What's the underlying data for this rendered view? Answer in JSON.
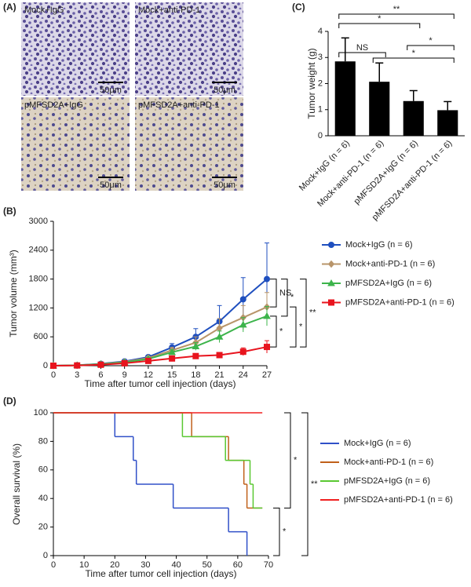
{
  "image_panel": {
    "label": "(A)",
    "images": [
      {
        "caption": "Mock+IgG",
        "scale_bar": "50μm"
      },
      {
        "caption": "Mock+anti-PD-1",
        "scale_bar": "50μm"
      },
      {
        "caption": "pMFSD2A+IgG",
        "scale_bar": "50μm"
      },
      {
        "caption": "pMFSD2A+anti-PD-1",
        "scale_bar": "50μm"
      }
    ]
  },
  "chart_data": [
    {
      "panel_label": "(C)",
      "type": "bar",
      "ylabel": "Tumor weight (g)",
      "categories": [
        "Mock+IgG (n = 6)",
        "Mock+anti-PD-1 (n = 6)",
        "pMFSD2A+IgG (n = 6)",
        "pMFSD2A+anti-PD-1 (n = 6)"
      ],
      "values": [
        2.85,
        2.07,
        1.33,
        0.98
      ],
      "errors": [
        0.9,
        0.72,
        0.4,
        0.33
      ],
      "color": "#000000",
      "ylim": [
        0,
        4
      ],
      "yticks": [
        0,
        1,
        2,
        3,
        4
      ],
      "annotations": [
        "**",
        "*",
        "NS",
        "*",
        "*"
      ]
    },
    {
      "panel_label": "(B)",
      "type": "line",
      "ylabel": "Tumor volume (mm³)",
      "xlabel": "Time after tumor cell injection (days)",
      "x": [
        0,
        3,
        6,
        9,
        12,
        15,
        18,
        21,
        24,
        27
      ],
      "series": [
        {
          "name": "Mock+IgG (n = 6)",
          "color": "#1f4fbf",
          "marker": "o",
          "values": [
            0,
            10,
            40,
            90,
            180,
            380,
            600,
            920,
            1380,
            1800
          ],
          "errors": [
            0,
            5,
            10,
            20,
            40,
            80,
            170,
            330,
            450,
            750
          ]
        },
        {
          "name": "Mock+anti-PD-1 (n = 6)",
          "color": "#b8956a",
          "marker": "D",
          "values": [
            0,
            8,
            35,
            80,
            160,
            320,
            480,
            780,
            1000,
            1220
          ],
          "errors": [
            0,
            5,
            10,
            20,
            30,
            60,
            120,
            200,
            250,
            300
          ]
        },
        {
          "name": "pMFSD2A+IgG (n = 6)",
          "color": "#3cb44b",
          "marker": "^",
          "values": [
            0,
            8,
            30,
            70,
            140,
            280,
            400,
            600,
            850,
            1030
          ],
          "errors": [
            0,
            5,
            10,
            15,
            30,
            50,
            80,
            120,
            150,
            200
          ]
        },
        {
          "name": "pMFSD2A+anti-PD-1 (n = 6)",
          "color": "#e8141e",
          "marker": "s",
          "values": [
            0,
            5,
            20,
            50,
            100,
            150,
            200,
            220,
            290,
            390
          ],
          "errors": [
            0,
            3,
            5,
            10,
            20,
            30,
            40,
            50,
            80,
            130
          ]
        }
      ],
      "xlim": [
        0,
        27
      ],
      "xticks": [
        0,
        3,
        6,
        9,
        12,
        15,
        18,
        21,
        24,
        27
      ],
      "ylim": [
        0,
        3000
      ],
      "yticks": [
        0,
        600,
        1200,
        1800,
        2400,
        3000
      ],
      "annotations": [
        "NS",
        "*",
        "**",
        "*",
        "*"
      ]
    },
    {
      "panel_label": "(D)",
      "type": "line",
      "drawstyle": "steps-post",
      "ylabel": "Overall survival (%)",
      "xlabel": "Time after tumor cell injection (days)",
      "series": [
        {
          "name": "Mock+IgG  (n = 6)",
          "color": "#3050c8",
          "x": [
            0,
            20,
            26,
            27,
            39,
            57,
            63
          ],
          "values": [
            100,
            83.3,
            66.7,
            50,
            33.3,
            16.7,
            0
          ]
        },
        {
          "name": "Mock+anti-PD-1 (n = 6)",
          "color": "#c0601a",
          "x": [
            0,
            45,
            57,
            62,
            63,
            68
          ],
          "values": [
            100,
            83.3,
            66.7,
            50,
            33.3,
            33.3
          ]
        },
        {
          "name": "pMFSD2A+IgG (n = 6)",
          "color": "#5ac832",
          "x": [
            0,
            42,
            56,
            64,
            65,
            68
          ],
          "values": [
            100,
            83.3,
            66.7,
            50,
            33.3,
            33.3
          ]
        },
        {
          "name": "pMFSD2A+anti-PD-1 (n = 6)",
          "color": "#f02020",
          "x": [
            0,
            68
          ],
          "values": [
            100,
            100
          ]
        }
      ],
      "xlim": [
        0,
        70
      ],
      "xticks": [
        0,
        10,
        20,
        30,
        40,
        50,
        60,
        70
      ],
      "ylim": [
        0,
        100
      ],
      "yticks": [
        0,
        20,
        40,
        60,
        80,
        100
      ],
      "annotations": [
        "*",
        "**",
        "*"
      ]
    }
  ]
}
